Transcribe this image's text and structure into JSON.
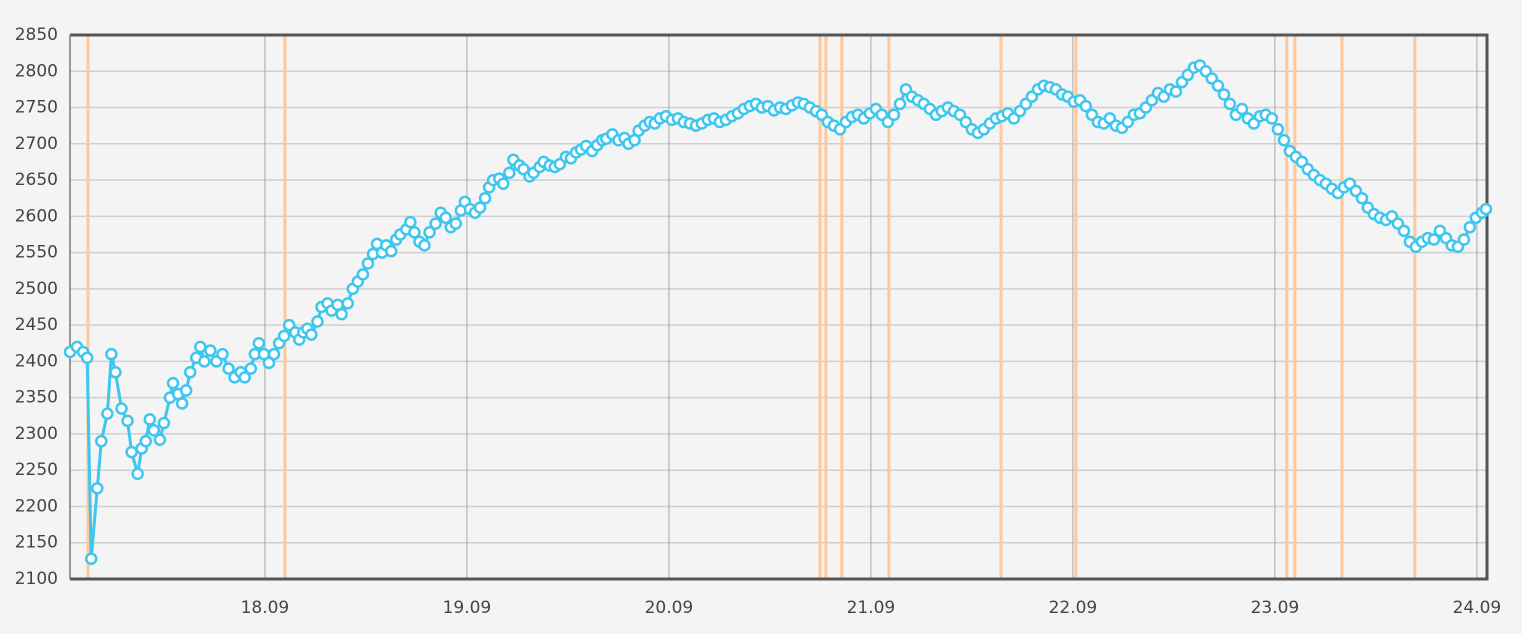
{
  "chart_data": {
    "type": "line",
    "x": [
      17.035,
      17.07,
      17.1,
      17.12,
      17.14,
      17.17,
      17.19,
      17.22,
      17.24,
      17.26,
      17.29,
      17.32,
      17.34,
      17.37,
      17.39,
      17.41,
      17.43,
      17.45,
      17.48,
      17.5,
      17.53,
      17.545,
      17.57,
      17.59,
      17.61,
      17.63,
      17.66,
      17.68,
      17.7,
      17.73,
      17.76,
      17.79,
      17.82,
      17.85,
      17.88,
      17.9,
      17.93,
      17.95,
      17.97,
      17.995,
      18.02,
      18.045,
      18.07,
      18.095,
      18.12,
      18.15,
      18.17,
      18.19,
      18.21,
      18.23,
      18.26,
      18.28,
      18.31,
      18.33,
      18.36,
      18.38,
      18.41,
      18.435,
      18.46,
      18.485,
      18.51,
      18.535,
      18.555,
      18.58,
      18.6,
      18.625,
      18.65,
      18.67,
      18.7,
      18.72,
      18.74,
      18.765,
      18.79,
      18.815,
      18.845,
      18.87,
      18.895,
      18.92,
      18.945,
      18.97,
      18.99,
      19.015,
      19.04,
      19.065,
      19.09,
      19.11,
      19.13,
      19.16,
      19.18,
      19.21,
      19.23,
      19.26,
      19.28,
      19.31,
      19.33,
      19.36,
      19.38,
      19.41,
      19.435,
      19.46,
      19.49,
      19.515,
      19.54,
      19.565,
      19.59,
      19.62,
      19.645,
      19.67,
      19.69,
      19.72,
      19.75,
      19.78,
      19.8,
      19.83,
      19.85,
      19.88,
      19.905,
      19.93,
      19.955,
      19.985,
      20.015,
      20.045,
      20.074,
      20.104,
      20.134,
      20.163,
      20.193,
      20.223,
      20.252,
      20.282,
      20.312,
      20.342,
      20.371,
      20.401,
      20.431,
      20.46,
      20.49,
      20.52,
      20.55,
      20.579,
      20.609,
      20.639,
      20.668,
      20.698,
      20.728,
      20.757,
      20.787,
      20.817,
      20.847,
      20.876,
      20.906,
      20.936,
      20.965,
      20.995,
      21.025,
      21.054,
      21.084,
      21.114,
      21.144,
      21.173,
      21.203,
      21.233,
      21.262,
      21.292,
      21.322,
      21.351,
      21.381,
      21.411,
      21.441,
      21.47,
      21.5,
      21.53,
      21.559,
      21.589,
      21.619,
      21.649,
      21.678,
      21.708,
      21.738,
      21.767,
      21.797,
      21.827,
      21.856,
      21.886,
      21.916,
      21.946,
      21.975,
      22.005,
      22.035,
      22.064,
      22.094,
      22.124,
      22.153,
      22.183,
      22.213,
      22.243,
      22.272,
      22.302,
      22.332,
      22.361,
      22.391,
      22.421,
      22.45,
      22.48,
      22.51,
      22.54,
      22.569,
      22.599,
      22.629,
      22.658,
      22.688,
      22.718,
      22.748,
      22.777,
      22.807,
      22.837,
      22.866,
      22.896,
      22.926,
      22.955,
      22.985,
      23.015,
      23.045,
      23.074,
      23.104,
      23.134,
      23.163,
      23.193,
      23.223,
      23.252,
      23.282,
      23.312,
      23.342,
      23.371,
      23.401,
      23.431,
      23.46,
      23.49,
      23.52,
      23.55,
      23.579,
      23.609,
      23.639,
      23.668,
      23.698,
      23.728,
      23.757,
      23.787,
      23.817,
      23.847,
      23.876,
      23.906,
      23.936,
      23.965,
      23.995,
      24.025,
      24.045
    ],
    "series": [
      {
        "color": "#3ec6ef",
        "values": [
          2413,
          2420,
          2413,
          2405,
          2128,
          2225,
          2290,
          2328,
          2410,
          2385,
          2335,
          2318,
          2275,
          2245,
          2280,
          2290,
          2320,
          2305,
          2292,
          2315,
          2350,
          2370,
          2355,
          2342,
          2360,
          2385,
          2405,
          2420,
          2400,
          2415,
          2400,
          2410,
          2390,
          2378,
          2385,
          2378,
          2390,
          2410,
          2425,
          2410,
          2398,
          2410,
          2425,
          2435,
          2450,
          2440,
          2430,
          2440,
          2445,
          2437,
          2455,
          2475,
          2480,
          2470,
          2478,
          2465,
          2480,
          2500,
          2510,
          2520,
          2535,
          2548,
          2562,
          2550,
          2560,
          2552,
          2568,
          2575,
          2582,
          2592,
          2578,
          2565,
          2560,
          2578,
          2590,
          2605,
          2598,
          2585,
          2590,
          2608,
          2620,
          2610,
          2605,
          2612,
          2625,
          2640,
          2650,
          2652,
          2645,
          2660,
          2678,
          2670,
          2665,
          2655,
          2660,
          2668,
          2675,
          2670,
          2668,
          2672,
          2682,
          2680,
          2688,
          2692,
          2697,
          2690,
          2698,
          2705,
          2707,
          2713,
          2705,
          2708,
          2700,
          2705,
          2718,
          2725,
          2730,
          2728,
          2735,
          2738,
          2733,
          2735,
          2730,
          2728,
          2725,
          2728,
          2733,
          2735,
          2730,
          2733,
          2738,
          2742,
          2748,
          2752,
          2755,
          2750,
          2752,
          2746,
          2750,
          2748,
          2753,
          2757,
          2755,
          2750,
          2745,
          2740,
          2730,
          2725,
          2720,
          2730,
          2737,
          2740,
          2735,
          2742,
          2748,
          2740,
          2730,
          2740,
          2755,
          2775,
          2765,
          2760,
          2755,
          2748,
          2740,
          2745,
          2750,
          2745,
          2740,
          2730,
          2720,
          2715,
          2720,
          2728,
          2735,
          2738,
          2742,
          2735,
          2745,
          2755,
          2765,
          2775,
          2780,
          2778,
          2775,
          2768,
          2765,
          2758,
          2760,
          2752,
          2740,
          2730,
          2728,
          2735,
          2725,
          2722,
          2730,
          2740,
          2742,
          2750,
          2760,
          2770,
          2765,
          2775,
          2772,
          2785,
          2795,
          2805,
          2808,
          2800,
          2790,
          2780,
          2768,
          2755,
          2740,
          2748,
          2735,
          2728,
          2738,
          2740,
          2735,
          2720,
          2705,
          2690,
          2682,
          2675,
          2665,
          2657,
          2650,
          2645,
          2638,
          2632,
          2640,
          2645,
          2635,
          2625,
          2612,
          2603,
          2598,
          2595,
          2600,
          2590,
          2580,
          2565,
          2558,
          2565,
          2570,
          2568,
          2580,
          2570,
          2560,
          2558,
          2568,
          2585,
          2598,
          2605,
          2610
        ]
      }
    ],
    "xlim": [
      17.035,
      24.05
    ],
    "xticks": [
      {
        "value": 18,
        "label": "18.09"
      },
      {
        "value": 19,
        "label": "19.09"
      },
      {
        "value": 20,
        "label": "20.09"
      },
      {
        "value": 21,
        "label": "21.09"
      },
      {
        "value": 22,
        "label": "22.09"
      },
      {
        "value": 23,
        "label": "23.09"
      },
      {
        "value": 24,
        "label": "24.09"
      }
    ],
    "ylim": [
      2100,
      2850
    ],
    "yticks": [
      2100,
      2150,
      2200,
      2250,
      2300,
      2350,
      2400,
      2450,
      2500,
      2550,
      2600,
      2650,
      2700,
      2750,
      2800,
      2850
    ],
    "grid": true,
    "vlines": [
      17.124,
      18.099,
      20.748,
      20.777,
      20.856,
      21.089,
      21.644,
      22.015,
      23.059,
      23.099,
      23.332,
      23.693
    ],
    "vline_color": "#ffc79a"
  }
}
